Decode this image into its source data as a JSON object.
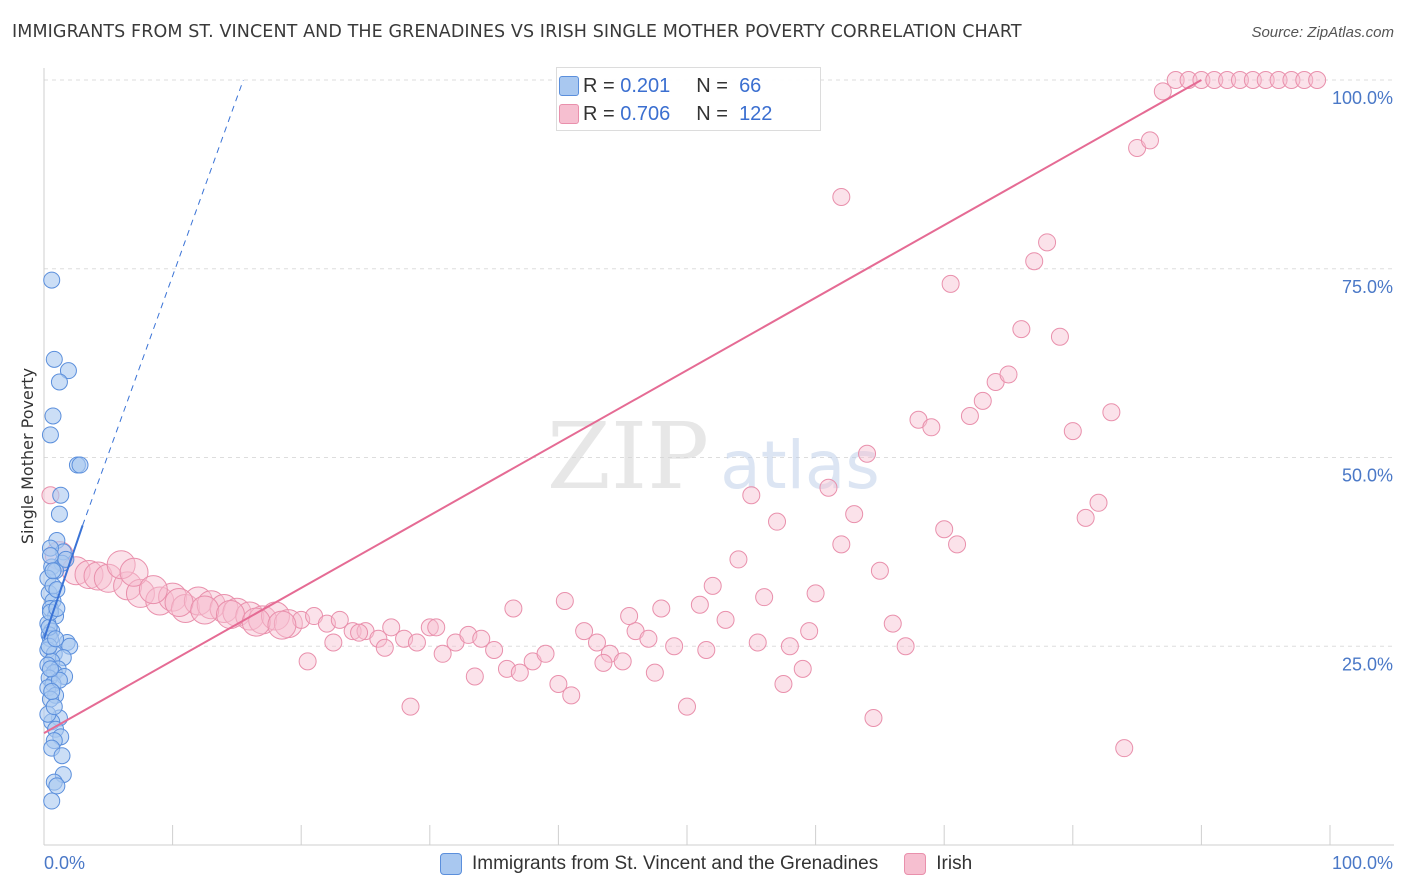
{
  "title": "IMMIGRANTS FROM ST. VINCENT AND THE GRENADINES VS IRISH SINGLE MOTHER POVERTY CORRELATION CHART",
  "source": "Source: ZipAtlas.com",
  "watermark": {
    "zip": "ZIP",
    "atlas": "atlas"
  },
  "colors": {
    "blue_fill": "#a9c8f0",
    "blue_stroke": "#5b8fdc",
    "blue_line": "#3a73d6",
    "pink_fill": "#f6bfd0",
    "pink_stroke": "#e990ac",
    "pink_line": "#e56b94",
    "tick_label": "#4a78c7",
    "grid": "#dddddd"
  },
  "legend": {
    "r_label": "R =",
    "n_label": "N =",
    "entries": [
      {
        "r": "0.201",
        "n": "66"
      },
      {
        "r": "0.706",
        "n": "122"
      }
    ]
  },
  "bottom_legend": [
    {
      "label": "Immigrants from St. Vincent and the Grenadines"
    },
    {
      "label": "Irish"
    }
  ],
  "chart_data": {
    "type": "scatter",
    "xlabel": "",
    "ylabel": "Single Mother Poverty",
    "xlim": [
      0,
      100
    ],
    "ylim": [
      0,
      100
    ],
    "x_tick_labels": [
      {
        "value": 0,
        "label": "0.0%"
      },
      {
        "value": 100,
        "label": "100.0%"
      }
    ],
    "y_tick_labels": [
      {
        "value": 25,
        "label": "25.0%"
      },
      {
        "value": 50,
        "label": "50.0%"
      },
      {
        "value": 75,
        "label": "75.0%"
      },
      {
        "value": 100,
        "label": "100.0%"
      }
    ],
    "grid": true,
    "legend_position": "top-center",
    "series": [
      {
        "name": "Immigrants from St. Vincent and the Grenadines",
        "color": "#a9c8f0",
        "trend": {
          "style": "solid",
          "x": [
            0.0,
            3.0
          ],
          "y": [
            26.0,
            41.0
          ]
        },
        "trend_extension": {
          "style": "dashed",
          "x": [
            3.0,
            15.5
          ],
          "y": [
            41.0,
            100.0
          ]
        },
        "points": [
          [
            0.6,
            73.5
          ],
          [
            0.8,
            63
          ],
          [
            1.9,
            61.5
          ],
          [
            1.2,
            60
          ],
          [
            0.7,
            55.5
          ],
          [
            0.5,
            53
          ],
          [
            2.6,
            49
          ],
          [
            2.8,
            49
          ],
          [
            1.3,
            45
          ],
          [
            1.2,
            42.5
          ],
          [
            1.0,
            39
          ],
          [
            1.5,
            37.5
          ],
          [
            1.4,
            36
          ],
          [
            0.5,
            38
          ],
          [
            0.6,
            35.5
          ],
          [
            0.9,
            35
          ],
          [
            0.3,
            34
          ],
          [
            0.4,
            32
          ],
          [
            0.7,
            31
          ],
          [
            0.5,
            30
          ],
          [
            0.9,
            29
          ],
          [
            0.3,
            28
          ],
          [
            0.6,
            27
          ],
          [
            0.4,
            26.5
          ],
          [
            0.5,
            26
          ],
          [
            1.8,
            25.5
          ],
          [
            2.0,
            25
          ],
          [
            0.3,
            24.5
          ],
          [
            0.8,
            24
          ],
          [
            1.5,
            23.5
          ],
          [
            0.6,
            23
          ],
          [
            0.3,
            22.5
          ],
          [
            1.1,
            22
          ],
          [
            0.8,
            21.5
          ],
          [
            1.6,
            21
          ],
          [
            0.4,
            20.8
          ],
          [
            0.7,
            20
          ],
          [
            0.3,
            19.5
          ],
          [
            0.9,
            18.5
          ],
          [
            0.5,
            18
          ],
          [
            1.2,
            15.5
          ],
          [
            0.6,
            15
          ],
          [
            0.9,
            14
          ],
          [
            1.3,
            13
          ],
          [
            0.8,
            12.5
          ],
          [
            0.6,
            11.5
          ],
          [
            1.4,
            10.5
          ],
          [
            1.5,
            8
          ],
          [
            0.8,
            7
          ],
          [
            0.6,
            4.5
          ],
          [
            1.0,
            6.5
          ],
          [
            0.4,
            27.5
          ],
          [
            0.5,
            29.5
          ],
          [
            0.7,
            33
          ],
          [
            1.0,
            30
          ],
          [
            0.4,
            25
          ],
          [
            1.2,
            20.5
          ],
          [
            0.5,
            22
          ],
          [
            0.3,
            16
          ],
          [
            0.8,
            17
          ],
          [
            0.6,
            19
          ],
          [
            1.7,
            36.5
          ],
          [
            0.9,
            26
          ],
          [
            1.0,
            32.5
          ],
          [
            0.5,
            37
          ],
          [
            0.7,
            35
          ]
        ]
      },
      {
        "name": "Irish",
        "color": "#f6bfd0",
        "trend": {
          "style": "solid",
          "x": [
            0.0,
            90.0
          ],
          "y": [
            13.5,
            100.0
          ]
        },
        "points": [
          [
            0.5,
            45
          ],
          [
            1.2,
            37
          ],
          [
            2.5,
            35
          ],
          [
            3.5,
            34.5
          ],
          [
            4.2,
            34.3
          ],
          [
            5.0,
            34
          ],
          [
            6.5,
            33
          ],
          [
            7.5,
            32
          ],
          [
            9.0,
            31
          ],
          [
            10.0,
            31.5
          ],
          [
            11.0,
            30
          ],
          [
            12.0,
            31
          ],
          [
            13.0,
            30.5
          ],
          [
            14.0,
            30
          ],
          [
            15.0,
            29.5
          ],
          [
            16.0,
            29
          ],
          [
            17.0,
            28.5
          ],
          [
            18.0,
            29
          ],
          [
            19.0,
            28
          ],
          [
            20.0,
            28.5
          ],
          [
            21.0,
            29
          ],
          [
            22.0,
            28
          ],
          [
            23.0,
            28.5
          ],
          [
            24.0,
            27
          ],
          [
            25.0,
            27
          ],
          [
            26.0,
            26
          ],
          [
            27.0,
            27.5
          ],
          [
            28.0,
            26
          ],
          [
            29.0,
            25.5
          ],
          [
            30.0,
            27.5
          ],
          [
            31.0,
            24
          ],
          [
            32.0,
            25.5
          ],
          [
            33.0,
            26.5
          ],
          [
            34.0,
            26
          ],
          [
            35.0,
            24.5
          ],
          [
            36.0,
            22
          ],
          [
            37.0,
            21.5
          ],
          [
            38.0,
            23
          ],
          [
            39.0,
            24
          ],
          [
            40.0,
            20
          ],
          [
            41.0,
            18.5
          ],
          [
            42.0,
            27
          ],
          [
            43.0,
            25.5
          ],
          [
            44.0,
            24
          ],
          [
            45.0,
            23
          ],
          [
            46.0,
            27
          ],
          [
            47.0,
            26
          ],
          [
            48.0,
            30
          ],
          [
            49.0,
            25
          ],
          [
            50.0,
            17
          ],
          [
            51.0,
            30.5
          ],
          [
            52.0,
            33
          ],
          [
            53.0,
            28.5
          ],
          [
            54.0,
            36.5
          ],
          [
            55.0,
            45
          ],
          [
            56.0,
            31.5
          ],
          [
            57.0,
            41.5
          ],
          [
            58.0,
            25
          ],
          [
            59.0,
            22
          ],
          [
            60.0,
            32
          ],
          [
            61.0,
            46
          ],
          [
            62.0,
            38.5
          ],
          [
            63.0,
            42.5
          ],
          [
            64.0,
            50.5
          ],
          [
            65.0,
            35
          ],
          [
            66.0,
            28
          ],
          [
            67.0,
            25
          ],
          [
            68.0,
            55
          ],
          [
            69.0,
            54
          ],
          [
            70.0,
            40.5
          ],
          [
            71.0,
            38.5
          ],
          [
            72.0,
            55.5
          ],
          [
            73.0,
            57.5
          ],
          [
            74.0,
            60
          ],
          [
            75.0,
            61
          ],
          [
            76.0,
            67
          ],
          [
            77.0,
            76
          ],
          [
            78.0,
            78.5
          ],
          [
            79.0,
            66
          ],
          [
            80.0,
            53.5
          ],
          [
            81.0,
            42
          ],
          [
            82.0,
            44
          ],
          [
            83.0,
            56
          ],
          [
            84.0,
            11.5
          ],
          [
            85.0,
            91
          ],
          [
            86.0,
            92
          ],
          [
            87.0,
            98.5
          ],
          [
            88.0,
            100
          ],
          [
            89.0,
            100
          ],
          [
            90.0,
            100
          ],
          [
            91.0,
            100
          ],
          [
            92.0,
            100
          ],
          [
            93.0,
            100
          ],
          [
            94.0,
            100
          ],
          [
            95.0,
            100
          ],
          [
            96.0,
            100
          ],
          [
            97.0,
            100
          ],
          [
            98.0,
            100
          ],
          [
            99.0,
            100
          ],
          [
            40.5,
            31
          ],
          [
            36.5,
            30
          ],
          [
            20.5,
            23
          ],
          [
            33.5,
            21
          ],
          [
            45.5,
            29
          ],
          [
            28.5,
            17
          ],
          [
            57.5,
            20
          ],
          [
            64.5,
            15.5
          ],
          [
            70.5,
            73
          ],
          [
            62.0,
            84.5
          ],
          [
            6.0,
            35.8
          ],
          [
            7.0,
            34.8
          ],
          [
            8.5,
            32.5
          ],
          [
            10.5,
            30.8
          ],
          [
            12.5,
            29.8
          ],
          [
            14.5,
            29.2
          ],
          [
            16.5,
            28.2
          ],
          [
            18.5,
            27.8
          ],
          [
            24.5,
            26.8
          ],
          [
            30.5,
            27.5
          ],
          [
            22.5,
            25.5
          ],
          [
            26.5,
            24.8
          ],
          [
            43.5,
            22.8
          ],
          [
            47.5,
            21.5
          ],
          [
            51.5,
            24.5
          ],
          [
            55.5,
            25.5
          ],
          [
            59.5,
            27
          ]
        ]
      }
    ]
  }
}
